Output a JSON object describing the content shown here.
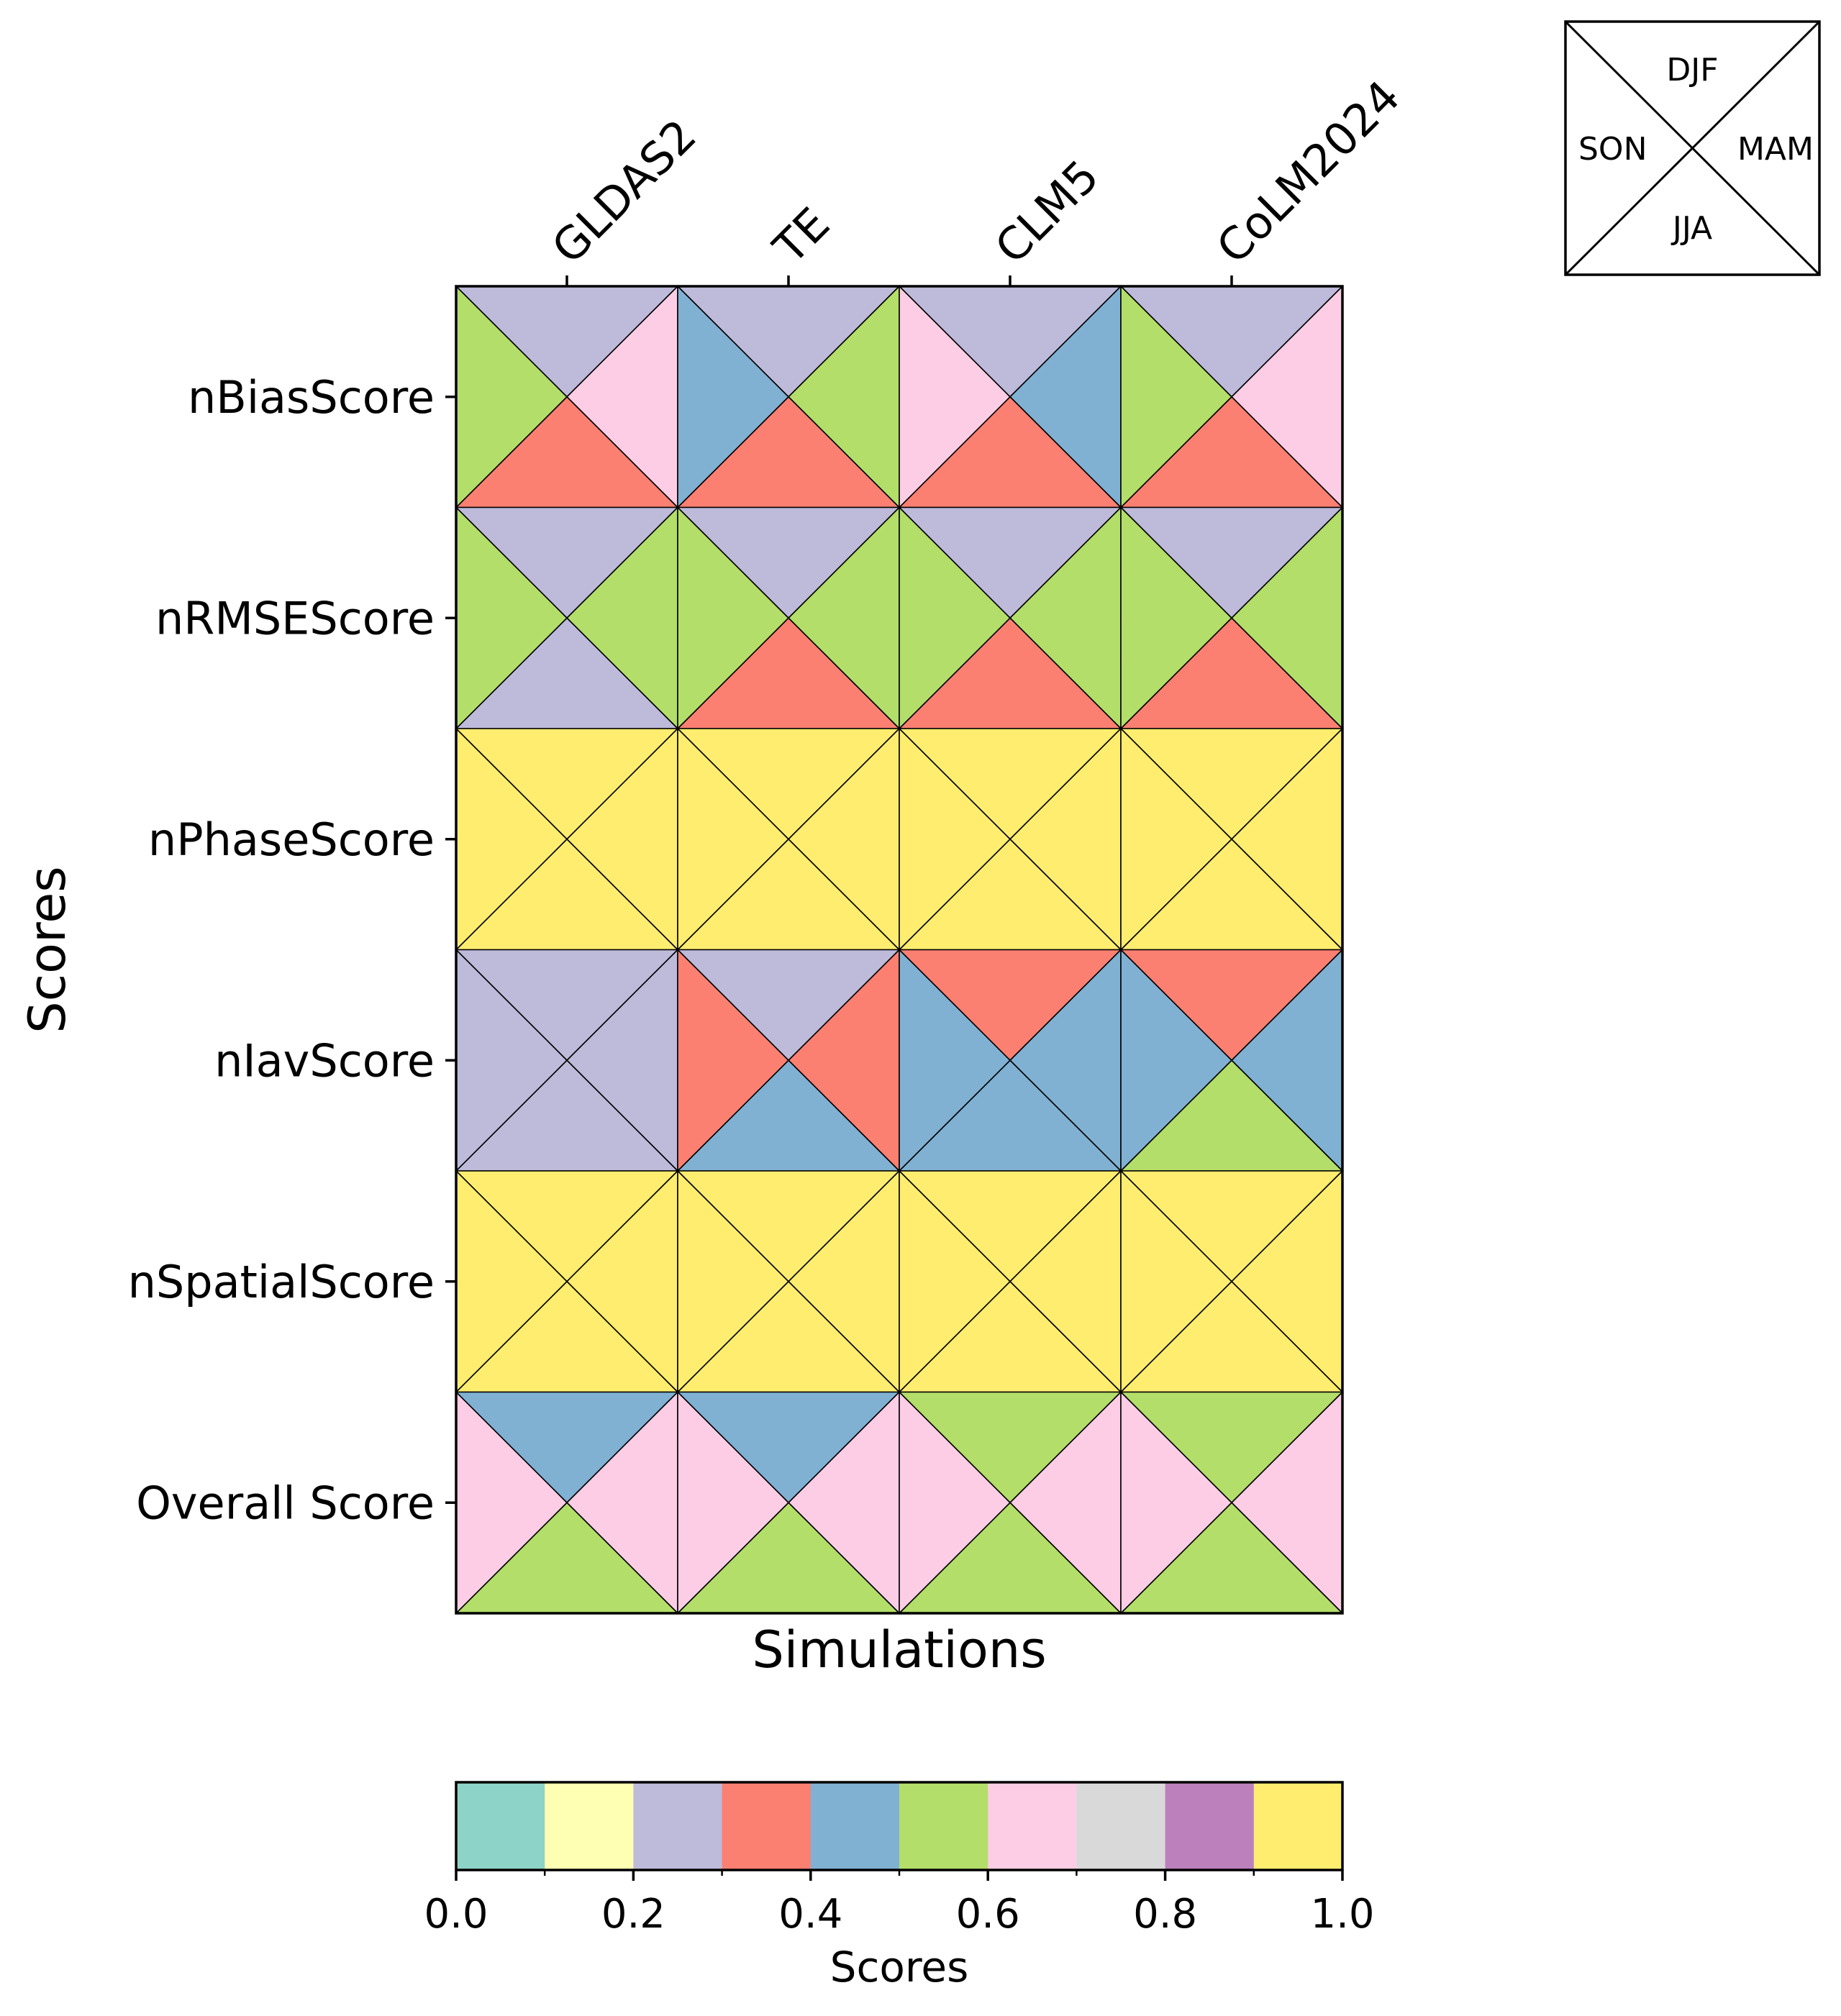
{
  "chart_data": {
    "type": "heatmap",
    "xlabel": "Simulations",
    "ylabel": "Scores",
    "simulations": [
      "GLDAS2",
      "TE",
      "CLM5",
      "CoLM2024"
    ],
    "metrics": [
      "nBiasScore",
      "nRMSEScore",
      "nPhaseScore",
      "nIavScore",
      "nSpatialScore",
      "Overall Score"
    ],
    "seasons": [
      "DJF",
      "MAM",
      "JJA",
      "SON"
    ],
    "season_layout": {
      "top": "DJF",
      "right": "MAM",
      "bottom": "JJA",
      "left": "SON"
    },
    "values": {
      "nBiasScore": {
        "GLDAS2": {
          "DJF": 0.25,
          "MAM": 0.65,
          "JJA": 0.35,
          "SON": 0.55
        },
        "TE": {
          "DJF": 0.25,
          "MAM": 0.55,
          "JJA": 0.35,
          "SON": 0.45
        },
        "CLM5": {
          "DJF": 0.25,
          "MAM": 0.45,
          "JJA": 0.35,
          "SON": 0.65
        },
        "CoLM2024": {
          "DJF": 0.25,
          "MAM": 0.65,
          "JJA": 0.35,
          "SON": 0.55
        }
      },
      "nRMSEScore": {
        "GLDAS2": {
          "DJF": 0.25,
          "MAM": 0.55,
          "JJA": 0.25,
          "SON": 0.55
        },
        "TE": {
          "DJF": 0.25,
          "MAM": 0.55,
          "JJA": 0.35,
          "SON": 0.55
        },
        "CLM5": {
          "DJF": 0.25,
          "MAM": 0.55,
          "JJA": 0.35,
          "SON": 0.55
        },
        "CoLM2024": {
          "DJF": 0.25,
          "MAM": 0.55,
          "JJA": 0.35,
          "SON": 0.55
        }
      },
      "nPhaseScore": {
        "GLDAS2": {
          "DJF": 0.95,
          "MAM": 0.95,
          "JJA": 0.95,
          "SON": 0.95
        },
        "TE": {
          "DJF": 0.95,
          "MAM": 0.95,
          "JJA": 0.95,
          "SON": 0.95
        },
        "CLM5": {
          "DJF": 0.95,
          "MAM": 0.95,
          "JJA": 0.95,
          "SON": 0.95
        },
        "CoLM2024": {
          "DJF": 0.95,
          "MAM": 0.95,
          "JJA": 0.95,
          "SON": 0.95
        }
      },
      "nIavScore": {
        "GLDAS2": {
          "DJF": 0.25,
          "MAM": 0.25,
          "JJA": 0.25,
          "SON": 0.25
        },
        "TE": {
          "DJF": 0.25,
          "MAM": 0.35,
          "JJA": 0.45,
          "SON": 0.35
        },
        "CLM5": {
          "DJF": 0.35,
          "MAM": 0.45,
          "JJA": 0.45,
          "SON": 0.45
        },
        "CoLM2024": {
          "DJF": 0.35,
          "MAM": 0.45,
          "JJA": 0.55,
          "SON": 0.45
        }
      },
      "nSpatialScore": {
        "GLDAS2": {
          "DJF": 0.95,
          "MAM": 0.95,
          "JJA": 0.95,
          "SON": 0.95
        },
        "TE": {
          "DJF": 0.95,
          "MAM": 0.95,
          "JJA": 0.95,
          "SON": 0.95
        },
        "CLM5": {
          "DJF": 0.95,
          "MAM": 0.95,
          "JJA": 0.95,
          "SON": 0.95
        },
        "CoLM2024": {
          "DJF": 0.95,
          "MAM": 0.95,
          "JJA": 0.95,
          "SON": 0.95
        }
      },
      "Overall Score": {
        "GLDAS2": {
          "DJF": 0.45,
          "MAM": 0.65,
          "JJA": 0.55,
          "SON": 0.65
        },
        "TE": {
          "DJF": 0.45,
          "MAM": 0.65,
          "JJA": 0.55,
          "SON": 0.65
        },
        "CLM5": {
          "DJF": 0.55,
          "MAM": 0.65,
          "JJA": 0.55,
          "SON": 0.65
        },
        "CoLM2024": {
          "DJF": 0.55,
          "MAM": 0.65,
          "JJA": 0.55,
          "SON": 0.65
        }
      }
    },
    "colorbar": {
      "label": "Scores",
      "range": [
        0.0,
        1.0
      ],
      "bins": 10,
      "colors": [
        "#8dd3c7",
        "#ffffb3",
        "#bebada",
        "#fb8072",
        "#80b1d3",
        "#b3de69",
        "#fccde5",
        "#d9d9d9",
        "#bc80bd",
        "#ffed6f"
      ],
      "tick_labels": [
        "0.0",
        "0.2",
        "0.4",
        "0.6",
        "0.8",
        "1.0"
      ],
      "tick_values": [
        0.0,
        0.2,
        0.4,
        0.6,
        0.8,
        1.0
      ],
      "minor_tick_values": [
        0.1,
        0.3,
        0.5,
        0.7,
        0.9
      ]
    },
    "legend_placement": "top-right"
  }
}
